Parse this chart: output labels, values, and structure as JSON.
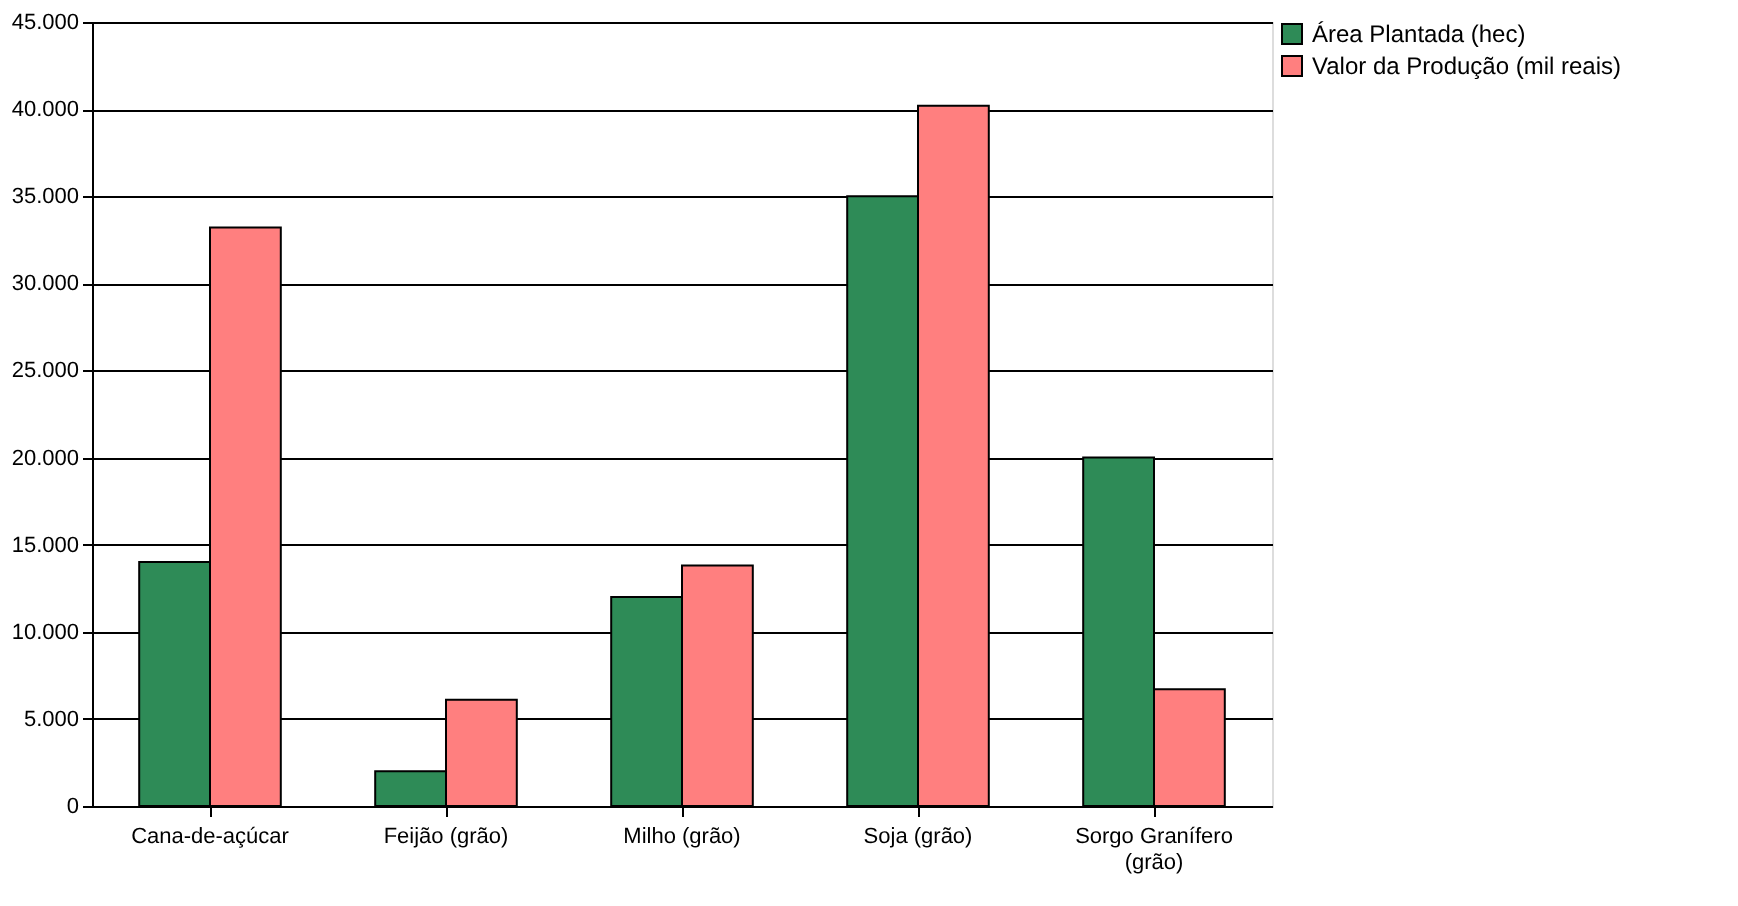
{
  "chart_data": {
    "type": "bar",
    "categories": [
      "Cana-de-açúcar",
      "Feijão (grão)",
      "Milho (grão)",
      "Soja (grão)",
      "Sorgo Granífero (grão)"
    ],
    "series": [
      {
        "name": "Área Plantada (hec)",
        "color": "#2e8b57",
        "values": [
          14000,
          2000,
          12000,
          35000,
          20000
        ]
      },
      {
        "name": "Valor da Produção (mil reais)",
        "color": "#ff7f7f",
        "values": [
          33200,
          6100,
          13800,
          40200,
          6700
        ]
      }
    ],
    "ylim": [
      0,
      45000
    ],
    "yticks": [
      {
        "value": 0,
        "label": "0"
      },
      {
        "value": 5000,
        "label": "5.000"
      },
      {
        "value": 10000,
        "label": "10.000"
      },
      {
        "value": 15000,
        "label": "15.000"
      },
      {
        "value": 20000,
        "label": "20.000"
      },
      {
        "value": 25000,
        "label": "25.000"
      },
      {
        "value": 30000,
        "label": "30.000"
      },
      {
        "value": 35000,
        "label": "35.000"
      },
      {
        "value": 40000,
        "label": "40.000"
      },
      {
        "value": 45000,
        "label": "45.000"
      }
    ],
    "grid": "y",
    "legend": "right"
  }
}
